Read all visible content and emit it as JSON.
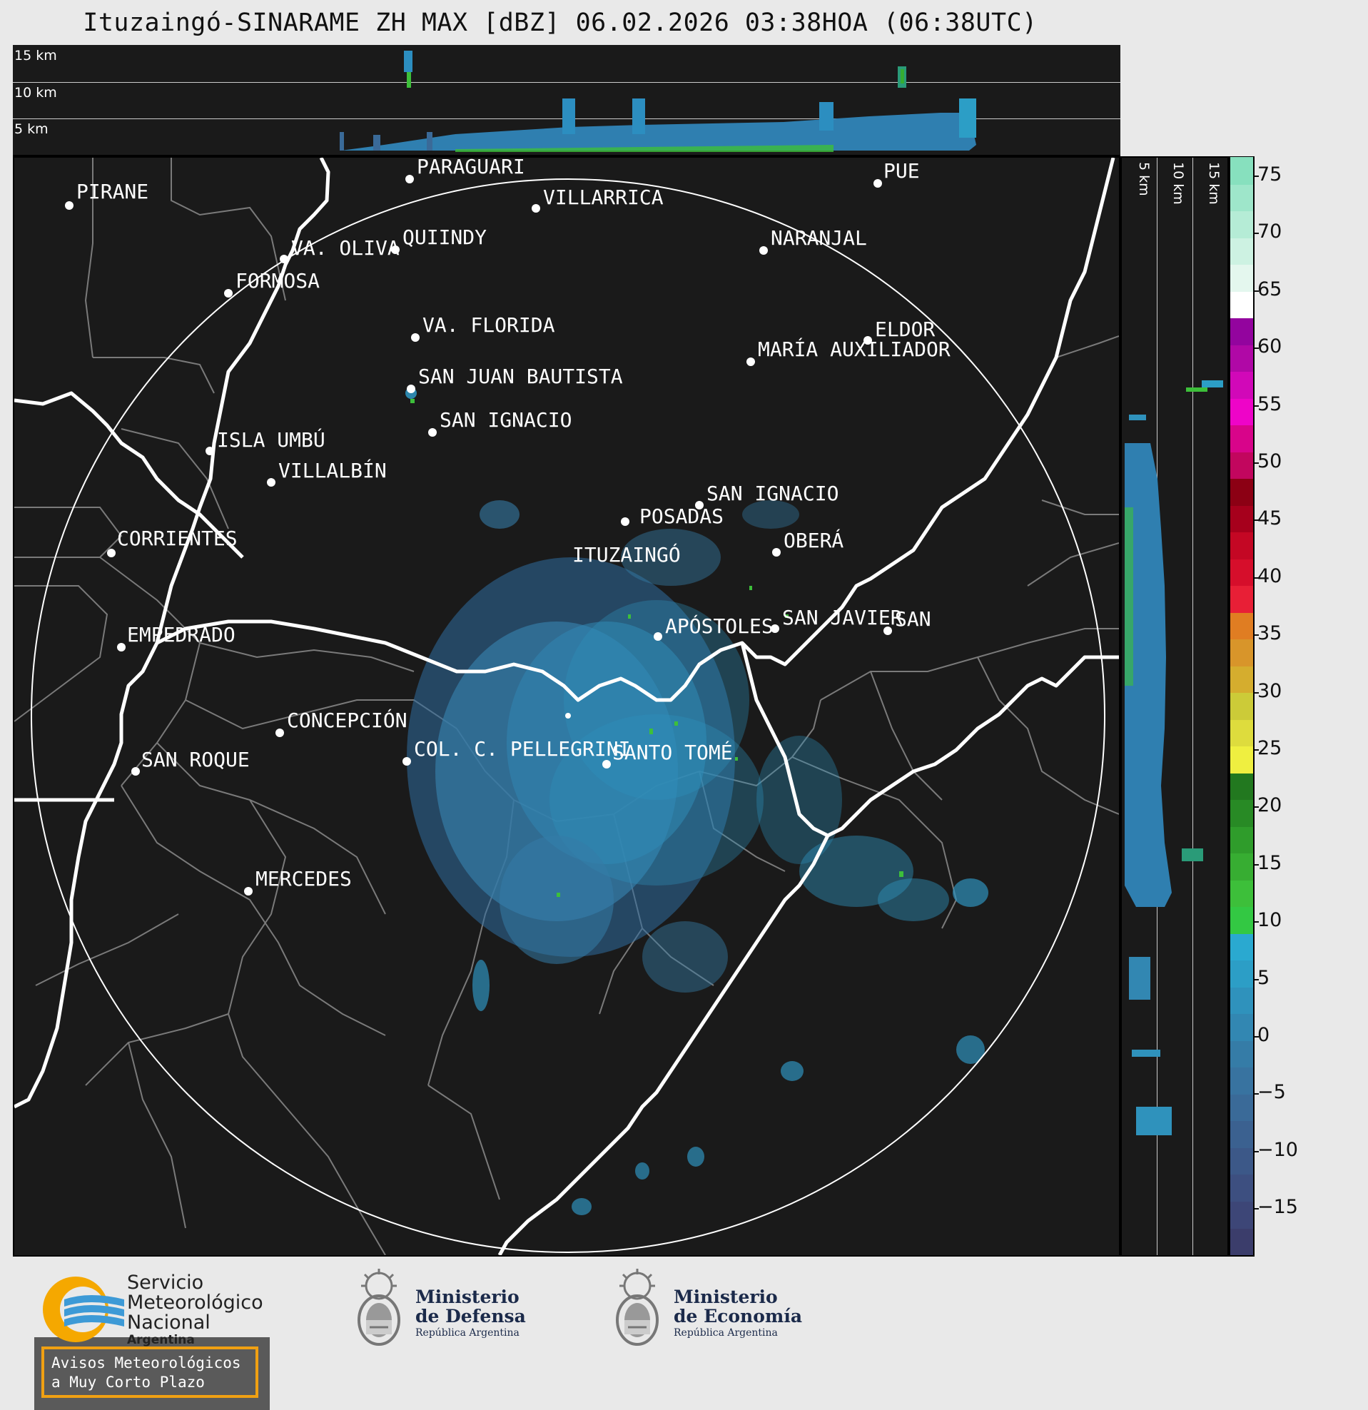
{
  "title": "Ituzaingó-SINARAME ZH MAX [dBZ] 06.02.2026 03:38HOA (06:38UTC)",
  "top_panel": {
    "levels": [
      "15 km",
      "10 km",
      "5 km"
    ]
  },
  "side_panel": {
    "levels": [
      "5 km",
      "10 km",
      "15 km"
    ]
  },
  "colorbar": {
    "ticks": [
      "75",
      "70",
      "65",
      "60",
      "55",
      "50",
      "45",
      "40",
      "35",
      "30",
      "25",
      "20",
      "15",
      "10",
      "5",
      "0",
      "−5",
      "−10",
      "−15"
    ],
    "colors": [
      "#3b3d6b",
      "#3d4677",
      "#3d4f80",
      "#3c5888",
      "#3b6190",
      "#3a6a98",
      "#3873a0",
      "#357ca7",
      "#3287b2",
      "#2f92bc",
      "#2c9ec6",
      "#2aa9d0",
      "#33c843",
      "#3dbf3a",
      "#37ad32",
      "#2f9c2b",
      "#288a25",
      "#22781f",
      "#efef40",
      "#dedc3d",
      "#cccb38",
      "#d5ad2e",
      "#d8952a",
      "#e07d22",
      "#e81f36",
      "#d60e2b",
      "#c40724",
      "#a6001c",
      "#8c0014",
      "#c2065e",
      "#d8048a",
      "#ee04c8",
      "#d108b8",
      "#b008a6",
      "#93049e",
      "#ffffff",
      "#e4f7ee",
      "#cdf2e2",
      "#b5ecd6",
      "#9ee6ca",
      "#87e0be"
    ]
  },
  "map": {
    "radar_site": "ITUZAINGÓ",
    "places": [
      {
        "name": "PIRANE"
      },
      {
        "name": "PARAGUARÍ"
      },
      {
        "name": "VILLARRICA"
      },
      {
        "name": "QUIINDY"
      },
      {
        "name": "VA. OLIVA"
      },
      {
        "name": "NARANJAL"
      },
      {
        "name": "FORMOSA"
      },
      {
        "name": "VA. FLORIDA"
      },
      {
        "name": "ELDOR"
      },
      {
        "name": "MARÍA AUXILIADOR"
      },
      {
        "name": "SAN JUAN BAUTISTA"
      },
      {
        "name": "SAN IGNACIO"
      },
      {
        "name": "ISLA UMBÚ"
      },
      {
        "name": "VILLALBÍN"
      },
      {
        "name": "SAN IGNACIO"
      },
      {
        "name": "POSADAS"
      },
      {
        "name": "CORRIENTES"
      },
      {
        "name": "OBERÁ"
      },
      {
        "name": "ITUZAINGÓ"
      },
      {
        "name": "APÓSTOLES"
      },
      {
        "name": "SAN JAVIER"
      },
      {
        "name": "SAN"
      },
      {
        "name": "EMPEDRADO"
      },
      {
        "name": "CONCEPCIÓN"
      },
      {
        "name": "COL. C. PELLEGRINI"
      },
      {
        "name": "SANTO TOMÉ"
      },
      {
        "name": "SAN ROQUE"
      },
      {
        "name": "MERCEDES"
      },
      {
        "name": "PUE"
      }
    ]
  },
  "notice": {
    "line1": "Avisos Meteorológicos",
    "line2": "a Muy Corto Plazo"
  },
  "logos": {
    "smn": {
      "line1": "Servicio",
      "line2": "Meteorológico",
      "line3": "Nacional",
      "line4": "Argentina"
    },
    "defensa": {
      "line1": "Ministerio",
      "line2": "de Defensa",
      "line3": "República Argentina"
    },
    "economia": {
      "line1": "Ministerio",
      "line2": "de Economía",
      "line3": "República Argentina"
    }
  }
}
